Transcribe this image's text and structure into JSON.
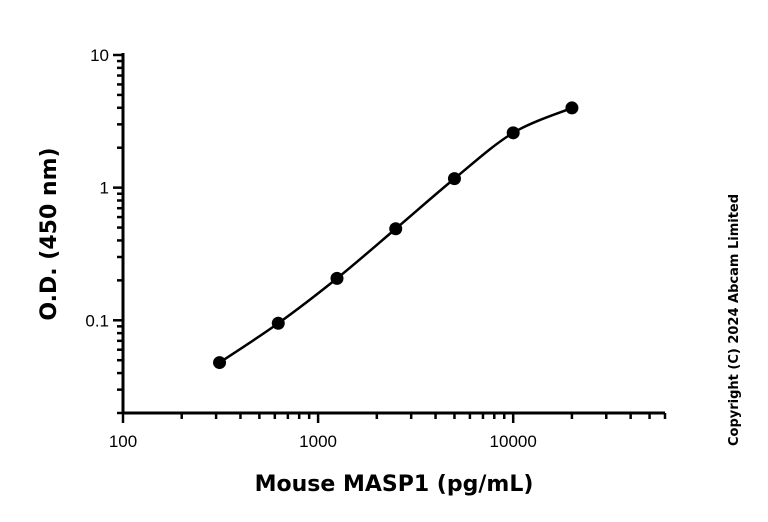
{
  "chart_data": {
    "type": "scatter",
    "xlabel": "Mouse MASP1 (pg/mL)",
    "ylabel": "O.D. (450 nm)",
    "x_scale": "log",
    "y_scale": "log",
    "xlim": [
      100,
      60000
    ],
    "ylim": [
      0.02,
      10
    ],
    "x_ticks": [
      100,
      1000,
      10000
    ],
    "x_tick_labels": [
      "100",
      "1000",
      "10000"
    ],
    "y_ticks": [
      0.1,
      1,
      10
    ],
    "y_tick_labels": [
      "0.1",
      "1",
      "10"
    ],
    "grid": false,
    "fitted_curve": true,
    "series": [
      {
        "x": [
          312.5,
          625,
          1250,
          2500,
          5000,
          10000,
          20000
        ],
        "y": [
          0.048,
          0.095,
          0.207,
          0.49,
          1.17,
          2.59,
          3.99
        ],
        "color": "#000000"
      }
    ]
  },
  "copyright": "Copyright (C) 2024 Abcam Limited"
}
